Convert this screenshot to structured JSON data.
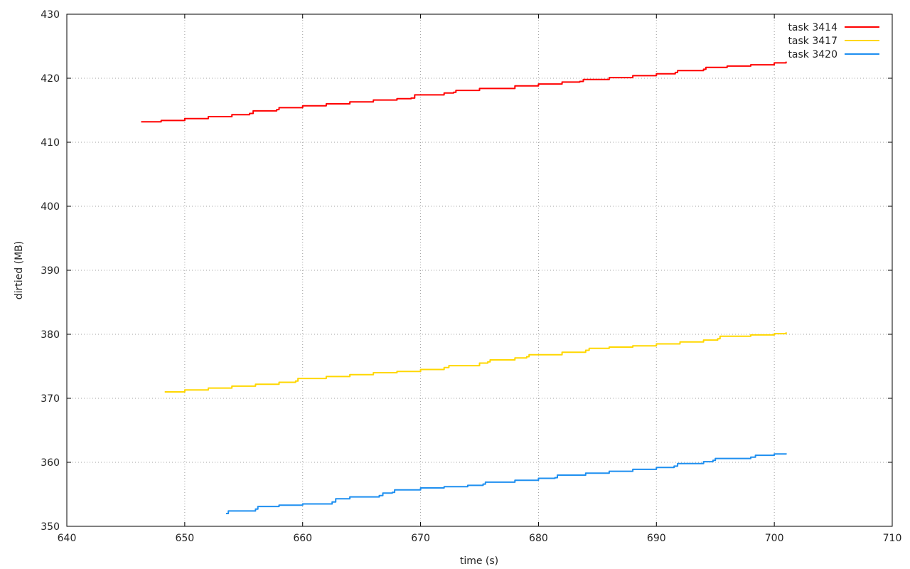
{
  "chart_data": {
    "type": "line",
    "xlabel": "time (s)",
    "ylabel": "dirtied (MB)",
    "xlim": [
      640,
      710
    ],
    "ylim": [
      350,
      430
    ],
    "x_ticks": [
      640,
      650,
      660,
      670,
      680,
      690,
      700,
      710
    ],
    "y_ticks": [
      350,
      360,
      370,
      380,
      390,
      400,
      410,
      420,
      430
    ],
    "grid": true,
    "legend_position": "top-right",
    "series": [
      {
        "name": "task 3414",
        "color": "#ff0000",
        "points": [
          [
            646.3,
            413.2
          ],
          [
            648.0,
            413.4
          ],
          [
            650.0,
            413.7
          ],
          [
            652.0,
            414.0
          ],
          [
            654.0,
            414.3
          ],
          [
            655.5,
            414.5
          ],
          [
            655.8,
            414.9
          ],
          [
            657.8,
            415.1
          ],
          [
            658.0,
            415.4
          ],
          [
            660.0,
            415.7
          ],
          [
            662.0,
            416.0
          ],
          [
            664.0,
            416.3
          ],
          [
            666.0,
            416.6
          ],
          [
            668.0,
            416.8
          ],
          [
            669.2,
            416.9
          ],
          [
            669.5,
            417.4
          ],
          [
            672.0,
            417.7
          ],
          [
            672.8,
            417.8
          ],
          [
            673.0,
            418.1
          ],
          [
            675.0,
            418.4
          ],
          [
            678.0,
            418.8
          ],
          [
            680.0,
            419.1
          ],
          [
            682.0,
            419.4
          ],
          [
            683.5,
            419.5
          ],
          [
            683.8,
            419.8
          ],
          [
            686.0,
            420.1
          ],
          [
            688.0,
            420.4
          ],
          [
            690.0,
            420.7
          ],
          [
            691.6,
            420.9
          ],
          [
            691.8,
            421.2
          ],
          [
            694.0,
            421.4
          ],
          [
            694.2,
            421.7
          ],
          [
            696.0,
            421.9
          ],
          [
            698.0,
            422.1
          ],
          [
            700.0,
            422.4
          ],
          [
            701.0,
            422.6
          ]
        ]
      },
      {
        "name": "task 3417",
        "color": "#ffd700",
        "points": [
          [
            648.3,
            371.0
          ],
          [
            650.0,
            371.3
          ],
          [
            652.0,
            371.6
          ],
          [
            654.0,
            371.9
          ],
          [
            656.0,
            372.2
          ],
          [
            658.0,
            372.5
          ],
          [
            659.4,
            372.7
          ],
          [
            659.6,
            373.1
          ],
          [
            662.0,
            373.4
          ],
          [
            664.0,
            373.7
          ],
          [
            666.0,
            374.0
          ],
          [
            668.0,
            374.2
          ],
          [
            670.0,
            374.5
          ],
          [
            672.0,
            374.8
          ],
          [
            672.4,
            375.1
          ],
          [
            675.0,
            375.5
          ],
          [
            675.7,
            375.7
          ],
          [
            675.9,
            376.0
          ],
          [
            678.0,
            376.3
          ],
          [
            679.0,
            376.5
          ],
          [
            679.2,
            376.8
          ],
          [
            682.0,
            377.2
          ],
          [
            684.0,
            377.5
          ],
          [
            684.3,
            377.8
          ],
          [
            686.0,
            378.0
          ],
          [
            688.0,
            378.2
          ],
          [
            690.0,
            378.5
          ],
          [
            692.0,
            378.8
          ],
          [
            694.0,
            379.1
          ],
          [
            695.2,
            379.3
          ],
          [
            695.4,
            379.7
          ],
          [
            698.0,
            379.9
          ],
          [
            700.0,
            380.1
          ],
          [
            701.0,
            380.3
          ]
        ]
      },
      {
        "name": "task 3420",
        "color": "#1e8ff0",
        "points": [
          [
            653.5,
            352.0
          ],
          [
            653.7,
            352.4
          ],
          [
            656.0,
            352.7
          ],
          [
            656.2,
            353.1
          ],
          [
            658.0,
            353.3
          ],
          [
            660.0,
            353.5
          ],
          [
            662.5,
            353.8
          ],
          [
            662.8,
            354.3
          ],
          [
            664.0,
            354.6
          ],
          [
            666.5,
            354.8
          ],
          [
            666.8,
            355.2
          ],
          [
            667.6,
            355.3
          ],
          [
            667.8,
            355.7
          ],
          [
            670.0,
            356.0
          ],
          [
            672.0,
            356.2
          ],
          [
            674.0,
            356.4
          ],
          [
            675.3,
            356.6
          ],
          [
            675.5,
            356.9
          ],
          [
            678.0,
            357.2
          ],
          [
            680.0,
            357.5
          ],
          [
            681.4,
            357.6
          ],
          [
            681.6,
            358.0
          ],
          [
            684.0,
            358.3
          ],
          [
            686.0,
            358.6
          ],
          [
            688.0,
            358.9
          ],
          [
            690.0,
            359.2
          ],
          [
            691.5,
            359.4
          ],
          [
            691.8,
            359.8
          ],
          [
            694.0,
            360.1
          ],
          [
            694.8,
            360.3
          ],
          [
            695.0,
            360.6
          ],
          [
            698.0,
            360.8
          ],
          [
            698.4,
            361.1
          ],
          [
            700.0,
            361.3
          ],
          [
            701.0,
            361.4
          ]
        ]
      }
    ]
  }
}
